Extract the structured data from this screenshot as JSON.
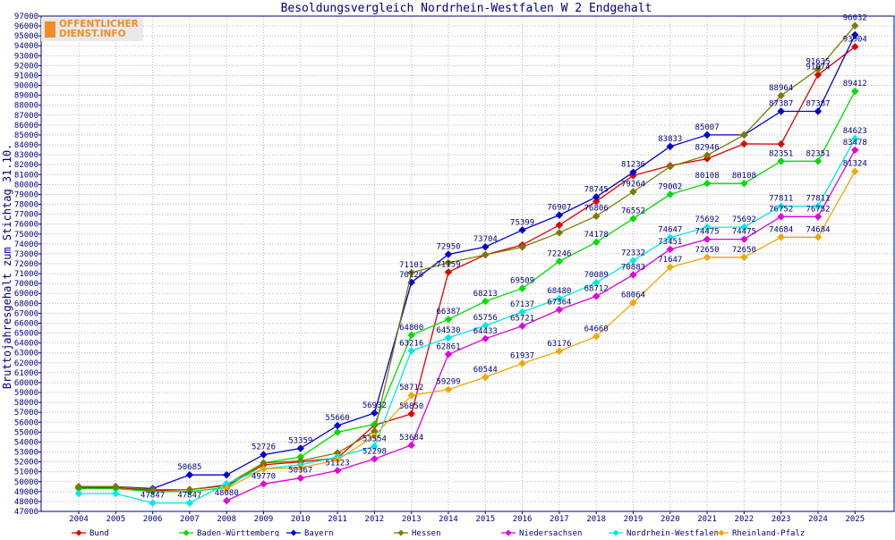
{
  "logo": {
    "line1": "OFFENTLICHER",
    "line2": "DIENST.INFO"
  },
  "chart_data": {
    "type": "line",
    "title": "Besoldungsvergleich Nordrhein-Westfalen W 2 Endgehalt",
    "xlabel": "",
    "ylabel": "Bruttojahresgehalt zum Stichtag 31.10.",
    "ylim": [
      47000,
      97000
    ],
    "ytick_step": 1000,
    "grid": true,
    "legend_position": "bottom",
    "categories": [
      "2004",
      "2005",
      "2006",
      "2007",
      "2008",
      "2009",
      "2010",
      "2011",
      "2012",
      "2013",
      "2014",
      "2015",
      "2016",
      "2017",
      "2018",
      "2019",
      "2020",
      "2021",
      "2022",
      "2023",
      "2024",
      "2025"
    ],
    "series": [
      {
        "name": "Bund",
        "color": "#e00000",
        "values": [
          49400,
          49400,
          49100,
          49200,
          49600,
          51700,
          52000,
          52400,
          55700,
          56850,
          71159,
          72900,
          73900,
          75900,
          78300,
          80900,
          81900,
          82600,
          84100,
          84088,
          91074,
          93904
        ]
      },
      {
        "name": "Baden-Württemberg",
        "color": "#00dd00",
        "values": [
          49300,
          49300,
          49000,
          49000,
          49400,
          51900,
          52500,
          55000,
          55800,
          64800,
          66387,
          68213,
          69509,
          72246,
          74178,
          76552,
          79002,
          80108,
          80108,
          82351,
          82351,
          89412
        ]
      },
      {
        "name": "Bayern",
        "color": "#0000cc",
        "values": [
          49500,
          49500,
          49300,
          50685,
          50685,
          52726,
          53359,
          55660,
          56932,
          70120,
          72950,
          73704,
          75399,
          76907,
          78745,
          81236,
          83833,
          85007,
          85007,
          87387,
          87387,
          95104
        ]
      },
      {
        "name": "Hessen",
        "color": "#7a7a00",
        "values": [
          49500,
          49500,
          49200,
          49200,
          49700,
          51900,
          52100,
          52900,
          55100,
          71101,
          72100,
          72900,
          73680,
          75133,
          76806,
          79264,
          81800,
          82946,
          85000,
          88964,
          91635,
          96032
        ]
      },
      {
        "name": "Niedersachsen",
        "color": "#e000e0",
        "values": [
          null,
          null,
          null,
          null,
          48080,
          49770,
          50367,
          51123,
          52298,
          53684,
          62861,
          64433,
          65721,
          67364,
          68712,
          70883,
          73451,
          74475,
          74475,
          76752,
          76752,
          83478
        ]
      },
      {
        "name": "Nordrhein-Westfalen",
        "color": "#00e8e8",
        "values": [
          48800,
          48800,
          47847,
          47847,
          49800,
          51300,
          51700,
          52500,
          53554,
          63216,
          64530,
          65756,
          67137,
          68480,
          70089,
          72332,
          74647,
          75692,
          75692,
          77811,
          77811,
          84623
        ]
      },
      {
        "name": "Rheinland-Pfalz",
        "color": "#f0a800",
        "values": [
          null,
          null,
          null,
          null,
          49300,
          51300,
          51400,
          52200,
          54600,
          58712,
          59299,
          60544,
          61937,
          63176,
          64660,
          68064,
          71647,
          72650,
          72650,
          74684,
          74684,
          81324
        ]
      }
    ],
    "data_labels": [
      {
        "s": 0,
        "i": 9,
        "text": "56850"
      },
      {
        "s": 0,
        "i": 10,
        "text": "71159"
      },
      {
        "s": 0,
        "i": 20,
        "text": "91074"
      },
      {
        "s": 0,
        "i": 21,
        "text": "93904"
      },
      {
        "s": 1,
        "i": 9,
        "text": "64800"
      },
      {
        "s": 1,
        "i": 10,
        "text": "66387"
      },
      {
        "s": 1,
        "i": 11,
        "text": "68213"
      },
      {
        "s": 1,
        "i": 12,
        "text": "69509"
      },
      {
        "s": 1,
        "i": 13,
        "text": "72246"
      },
      {
        "s": 1,
        "i": 14,
        "text": "74178"
      },
      {
        "s": 1,
        "i": 15,
        "text": "76552"
      },
      {
        "s": 1,
        "i": 16,
        "text": "79002"
      },
      {
        "s": 1,
        "i": 17,
        "text": "80108"
      },
      {
        "s": 1,
        "i": 18,
        "text": "80108"
      },
      {
        "s": 1,
        "i": 19,
        "text": "82351"
      },
      {
        "s": 1,
        "i": 20,
        "text": "82351"
      },
      {
        "s": 1,
        "i": 21,
        "text": "89412"
      },
      {
        "s": 2,
        "i": 3,
        "text": "50685"
      },
      {
        "s": 2,
        "i": 5,
        "text": "52726"
      },
      {
        "s": 2,
        "i": 6,
        "text": "53359"
      },
      {
        "s": 2,
        "i": 7,
        "text": "55660"
      },
      {
        "s": 2,
        "i": 8,
        "text": "56932"
      },
      {
        "s": 2,
        "i": 9,
        "text": "70120"
      },
      {
        "s": 2,
        "i": 10,
        "text": "72950"
      },
      {
        "s": 2,
        "i": 11,
        "text": "73704"
      },
      {
        "s": 2,
        "i": 12,
        "text": "75399"
      },
      {
        "s": 2,
        "i": 13,
        "text": "76907"
      },
      {
        "s": 2,
        "i": 14,
        "text": "78745"
      },
      {
        "s": 2,
        "i": 15,
        "text": "81236"
      },
      {
        "s": 2,
        "i": 16,
        "text": "83833"
      },
      {
        "s": 2,
        "i": 17,
        "text": "85007"
      },
      {
        "s": 2,
        "i": 19,
        "text": "87387"
      },
      {
        "s": 2,
        "i": 20,
        "text": "87387"
      },
      {
        "s": 3,
        "i": 9,
        "text": "71101"
      },
      {
        "s": 3,
        "i": 14,
        "text": "76806"
      },
      {
        "s": 3,
        "i": 15,
        "text": "79264"
      },
      {
        "s": 3,
        "i": 17,
        "text": "82946"
      },
      {
        "s": 3,
        "i": 19,
        "text": "88964"
      },
      {
        "s": 3,
        "i": 20,
        "text": "91635"
      },
      {
        "s": 3,
        "i": 21,
        "text": "96032"
      },
      {
        "s": 4,
        "i": 4,
        "text": "48080"
      },
      {
        "s": 4,
        "i": 5,
        "text": "49770"
      },
      {
        "s": 4,
        "i": 6,
        "text": "50367"
      },
      {
        "s": 4,
        "i": 7,
        "text": "51123"
      },
      {
        "s": 4,
        "i": 8,
        "text": "52298"
      },
      {
        "s": 4,
        "i": 9,
        "text": "53684"
      },
      {
        "s": 4,
        "i": 10,
        "text": "62861"
      },
      {
        "s": 4,
        "i": 11,
        "text": "64433"
      },
      {
        "s": 4,
        "i": 12,
        "text": "65721"
      },
      {
        "s": 4,
        "i": 13,
        "text": "67364"
      },
      {
        "s": 4,
        "i": 14,
        "text": "68712"
      },
      {
        "s": 4,
        "i": 15,
        "text": "70883"
      },
      {
        "s": 4,
        "i": 16,
        "text": "73451"
      },
      {
        "s": 4,
        "i": 17,
        "text": "74475"
      },
      {
        "s": 4,
        "i": 18,
        "text": "74475"
      },
      {
        "s": 4,
        "i": 19,
        "text": "76752"
      },
      {
        "s": 4,
        "i": 20,
        "text": "76752"
      },
      {
        "s": 4,
        "i": 21,
        "text": "83478"
      },
      {
        "s": 5,
        "i": 2,
        "text": "47847"
      },
      {
        "s": 5,
        "i": 3,
        "text": "47847"
      },
      {
        "s": 5,
        "i": 8,
        "text": "53554"
      },
      {
        "s": 5,
        "i": 9,
        "text": "63216"
      },
      {
        "s": 5,
        "i": 10,
        "text": "64530"
      },
      {
        "s": 5,
        "i": 11,
        "text": "65756"
      },
      {
        "s": 5,
        "i": 12,
        "text": "67137"
      },
      {
        "s": 5,
        "i": 13,
        "text": "68480"
      },
      {
        "s": 5,
        "i": 14,
        "text": "70089"
      },
      {
        "s": 5,
        "i": 15,
        "text": "72332"
      },
      {
        "s": 5,
        "i": 16,
        "text": "74647"
      },
      {
        "s": 5,
        "i": 17,
        "text": "75692"
      },
      {
        "s": 5,
        "i": 18,
        "text": "75692"
      },
      {
        "s": 5,
        "i": 19,
        "text": "77811"
      },
      {
        "s": 5,
        "i": 20,
        "text": "77811"
      },
      {
        "s": 5,
        "i": 21,
        "text": "84623"
      },
      {
        "s": 6,
        "i": 9,
        "text": "58712"
      },
      {
        "s": 6,
        "i": 10,
        "text": "59299"
      },
      {
        "s": 6,
        "i": 11,
        "text": "60544"
      },
      {
        "s": 6,
        "i": 12,
        "text": "61937"
      },
      {
        "s": 6,
        "i": 13,
        "text": "63176"
      },
      {
        "s": 6,
        "i": 14,
        "text": "64660"
      },
      {
        "s": 6,
        "i": 15,
        "text": "68064"
      },
      {
        "s": 6,
        "i": 16,
        "text": "71647"
      },
      {
        "s": 6,
        "i": 17,
        "text": "72650"
      },
      {
        "s": 6,
        "i": 18,
        "text": "72650"
      },
      {
        "s": 6,
        "i": 19,
        "text": "74684"
      },
      {
        "s": 6,
        "i": 20,
        "text": "74684"
      },
      {
        "s": 6,
        "i": 21,
        "text": "81324"
      }
    ]
  }
}
